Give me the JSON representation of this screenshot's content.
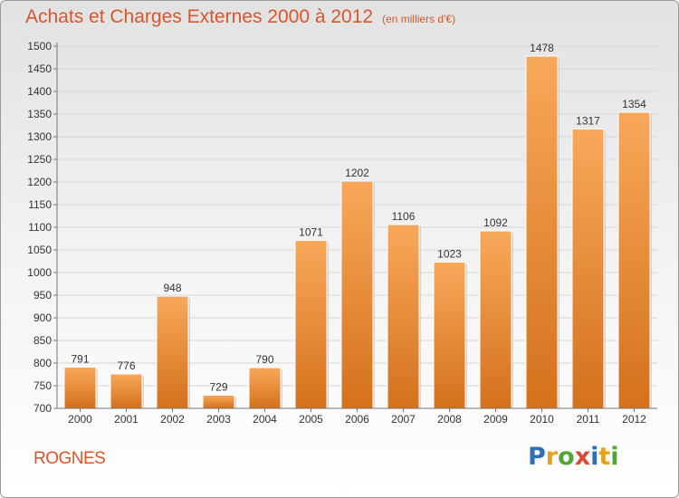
{
  "header": {
    "title": "Achats et Charges Externes 2000 à 2012",
    "unit": "(en milliers d'€)"
  },
  "footer": {
    "commune": "ROGNES",
    "logo_letters": [
      "P",
      "r",
      "o",
      "x",
      "i",
      "t",
      "i"
    ],
    "logo_colors": [
      "#2f6fb5",
      "#e8a21a",
      "#56a33b",
      "#d94b34",
      "#2f6fb5",
      "#e8a21a",
      "#56a33b"
    ]
  },
  "colors": {
    "bar_light": "#f8a85a",
    "bar_dark": "#d4711c",
    "text": "#333333",
    "accent": "#d9562c"
  },
  "chart_data": {
    "type": "bar",
    "title": "Achats et Charges Externes 2000 à 2012",
    "subtitle": "(en milliers d'€)",
    "xlabel": "",
    "ylabel": "",
    "categories": [
      "2000",
      "2001",
      "2002",
      "2003",
      "2004",
      "2005",
      "2006",
      "2007",
      "2008",
      "2009",
      "2010",
      "2011",
      "2012"
    ],
    "values": [
      791,
      776,
      948,
      729,
      790,
      1071,
      1202,
      1106,
      1023,
      1092,
      1478,
      1317,
      1354
    ],
    "ylim": [
      700,
      1500
    ],
    "yticks": [
      700,
      750,
      800,
      850,
      900,
      950,
      1000,
      1050,
      1100,
      1150,
      1200,
      1250,
      1300,
      1350,
      1400,
      1450,
      1500
    ],
    "grid": true,
    "legend": "none"
  }
}
